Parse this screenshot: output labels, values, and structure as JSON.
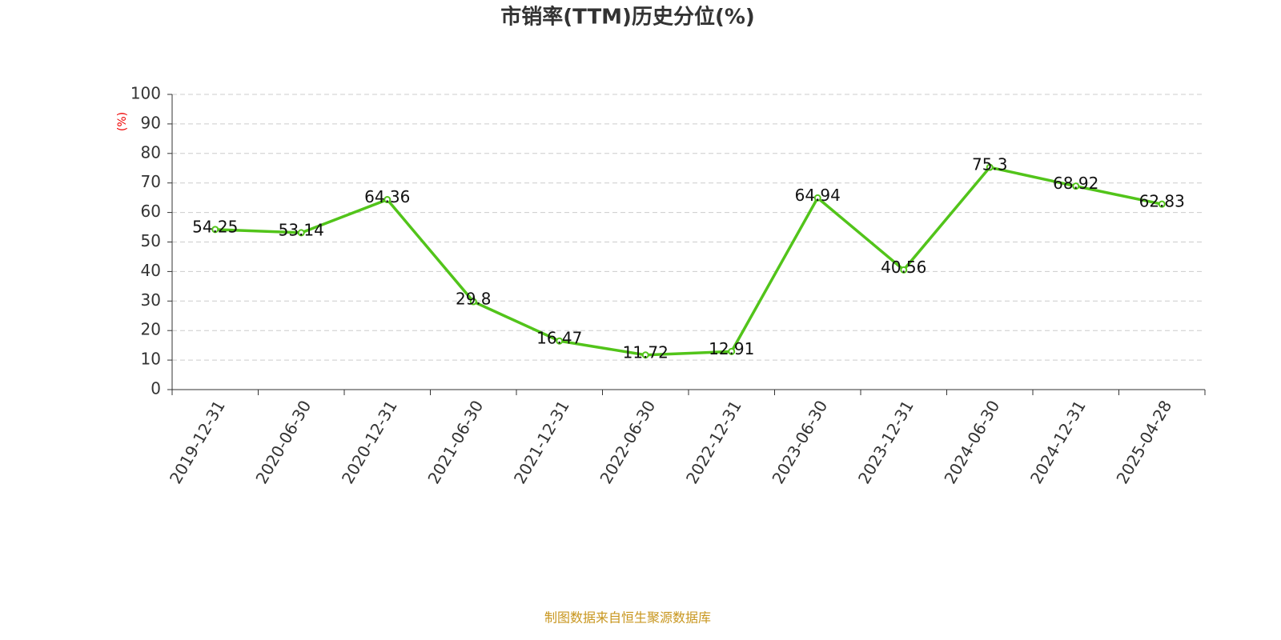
{
  "chart_data": {
    "type": "line",
    "title": "市销率(TTM)历史分位(%)",
    "y_label": "(%)",
    "source": "制图数据来自恒生聚源数据库",
    "categories": [
      "2019-12-31",
      "2020-06-30",
      "2020-12-31",
      "2021-06-30",
      "2021-12-31",
      "2022-06-30",
      "2022-12-31",
      "2023-06-30",
      "2023-12-31",
      "2024-06-30",
      "2024-12-31",
      "2025-04-28"
    ],
    "series": [
      {
        "name": "市销率(TTM)历史分位",
        "color": "#52c41a",
        "values": [
          54.25,
          53.14,
          64.36,
          29.8,
          16.47,
          11.72,
          12.91,
          64.94,
          40.56,
          75.3,
          68.92,
          62.83
        ]
      }
    ],
    "ylim": [
      0,
      100
    ],
    "yticks": [
      0,
      10,
      20,
      30,
      40,
      50,
      60,
      70,
      80,
      90,
      100
    ],
    "grid": true
  }
}
